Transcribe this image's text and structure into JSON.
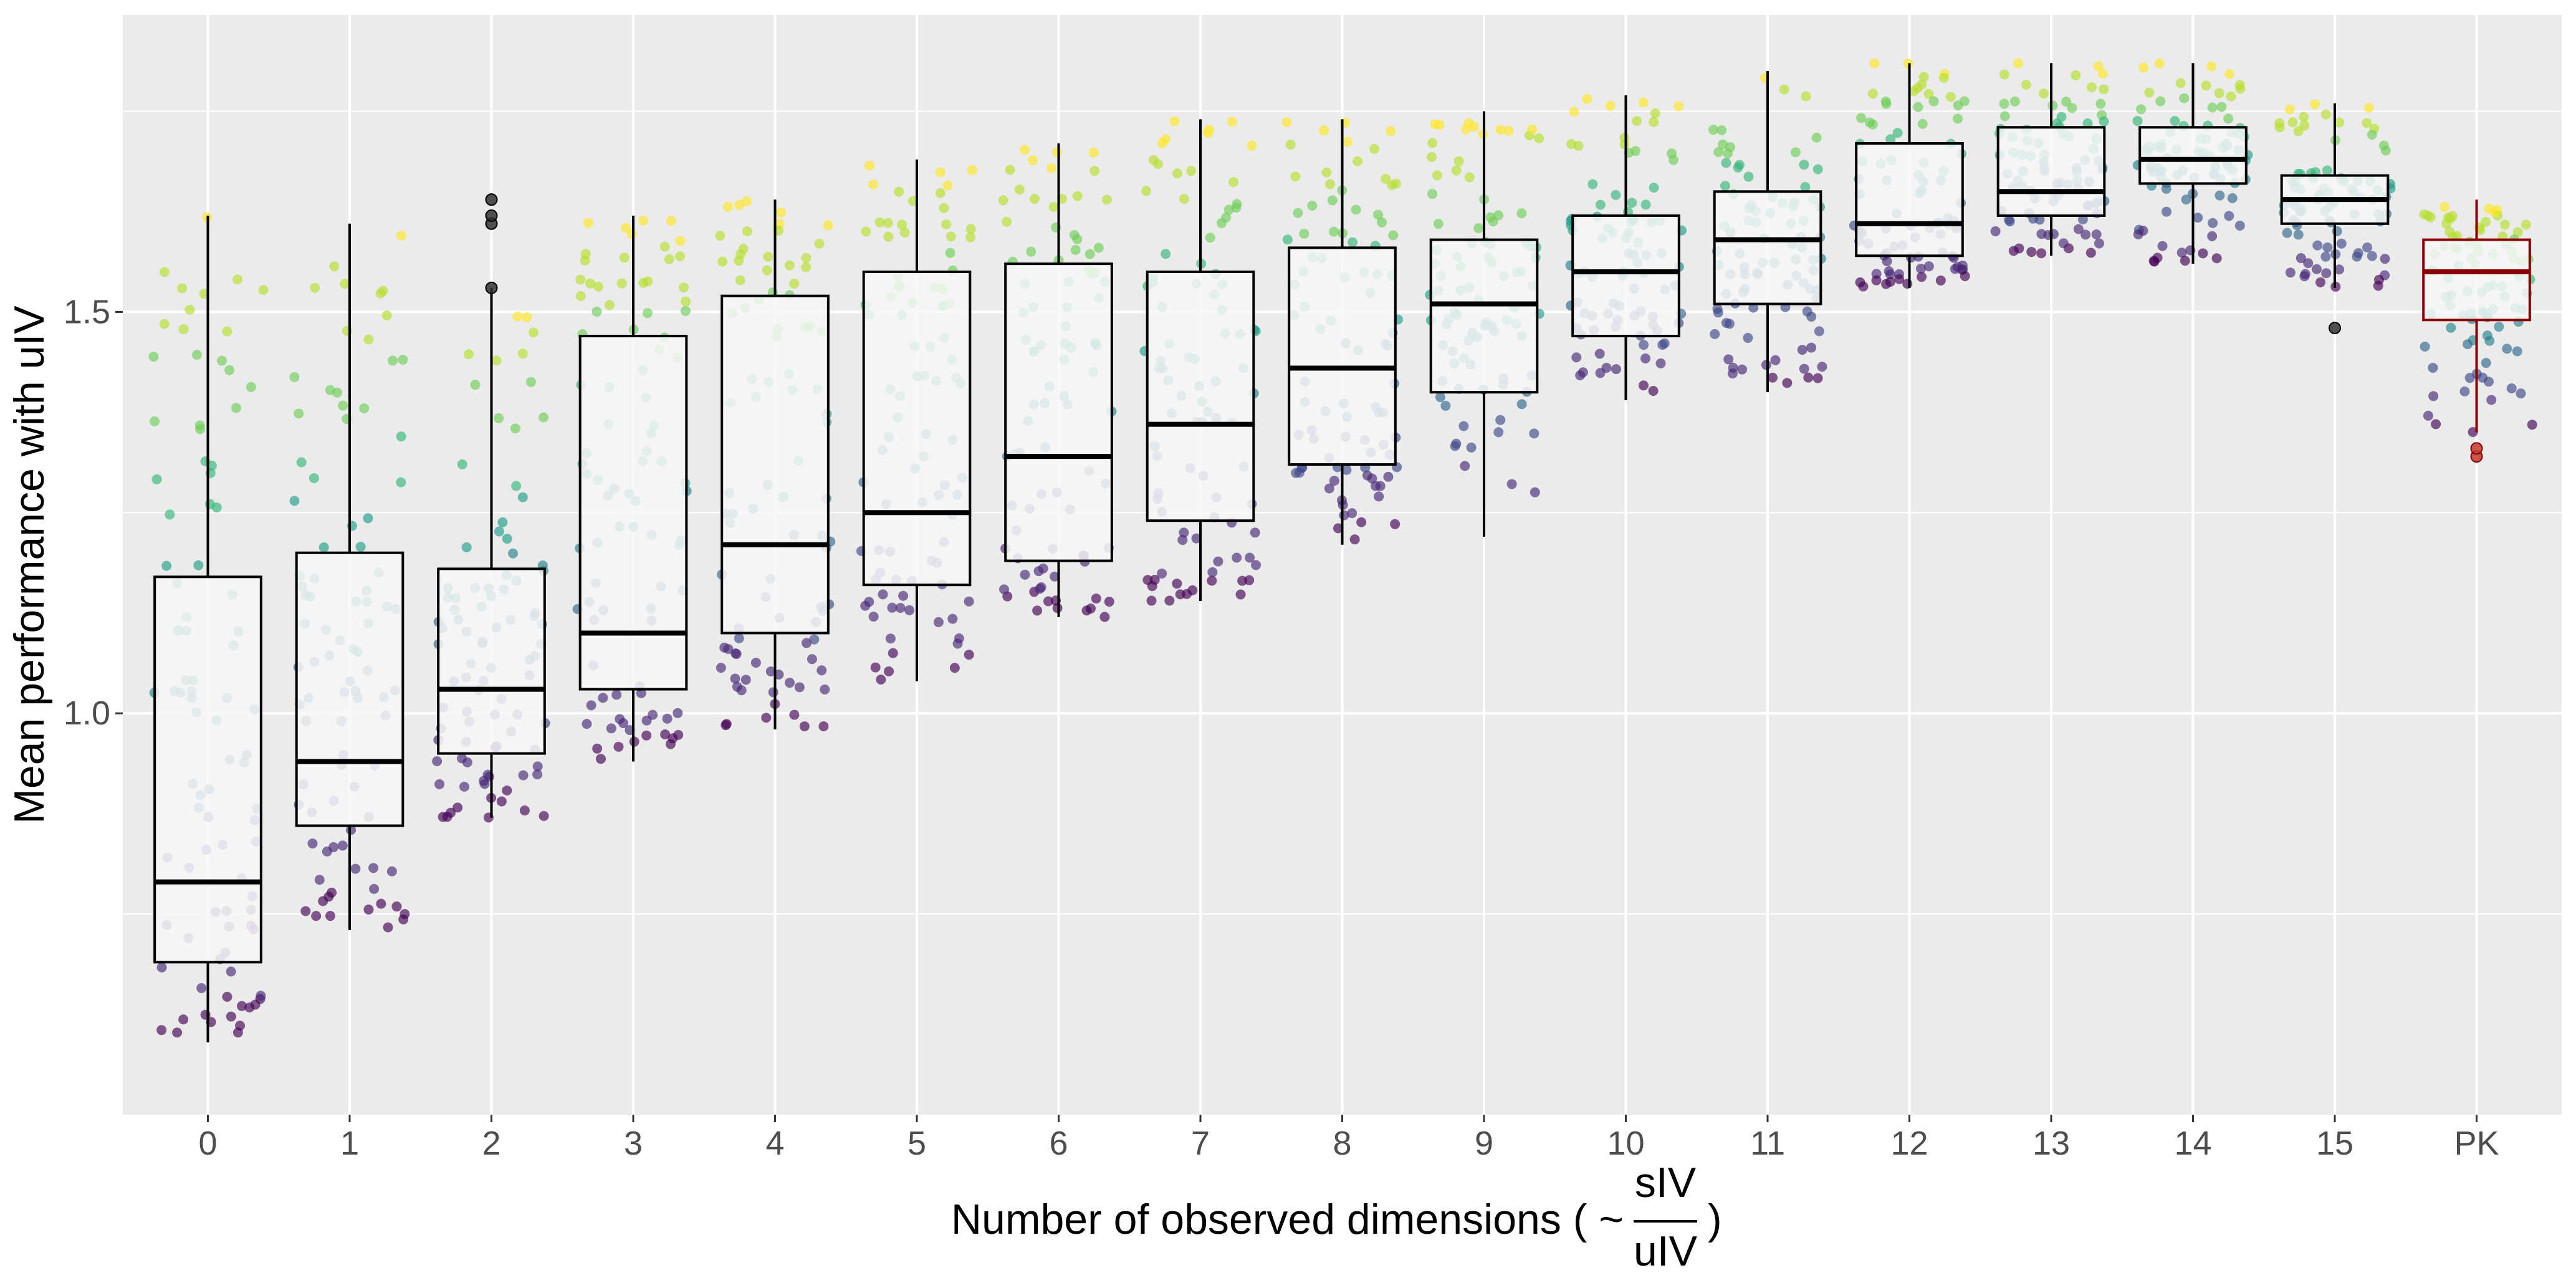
{
  "chart_data": {
    "type": "box",
    "title": "",
    "xlabel_text": "Number of observed dimensions ( ~",
    "xlabel_frac_num": "sIV",
    "xlabel_frac_den": "uIV",
    "xlabel_close": ")",
    "ylabel": "Mean performance with uIV",
    "ylim": [
      0.5,
      1.87
    ],
    "yticks": [
      1.0,
      1.5
    ],
    "ytick_labels": [
      "1.0",
      "1.5"
    ],
    "grid": true,
    "legend": "none",
    "categories": [
      "0",
      "1",
      "2",
      "3",
      "4",
      "5",
      "6",
      "7",
      "8",
      "9",
      "10",
      "11",
      "12",
      "13",
      "14",
      "15",
      "PK"
    ],
    "highlight_category": "PK",
    "colors": {
      "panel_bg": "#ebebeb",
      "grid": "#ffffff",
      "box_fill": "#f7f7f7",
      "box_line": "#000000",
      "pk_line": "#8b0000",
      "pk_label": "#8b0000",
      "point_palette": [
        "#440154",
        "#482878",
        "#3e4a89",
        "#31688e",
        "#26828e",
        "#1f9e89",
        "#35b779",
        "#6ece58",
        "#b5de2b",
        "#fde725"
      ]
    },
    "series": [
      {
        "category": "0",
        "min": 0.59,
        "q1": 0.69,
        "median": 0.79,
        "q3": 1.17,
        "max": 1.62,
        "outliers": []
      },
      {
        "category": "1",
        "min": 0.73,
        "q1": 0.86,
        "median": 0.94,
        "q3": 1.2,
        "max": 1.61,
        "outliers": []
      },
      {
        "category": "2",
        "min": 0.87,
        "q1": 0.95,
        "median": 1.03,
        "q3": 1.18,
        "max": 1.53,
        "outliers": [
          1.53,
          1.61,
          1.62,
          1.64
        ]
      },
      {
        "category": "3",
        "min": 0.94,
        "q1": 1.03,
        "median": 1.1,
        "q3": 1.47,
        "max": 1.62,
        "outliers": []
      },
      {
        "category": "4",
        "min": 0.98,
        "q1": 1.1,
        "median": 1.21,
        "q3": 1.52,
        "max": 1.64,
        "outliers": []
      },
      {
        "category": "5",
        "min": 1.04,
        "q1": 1.16,
        "median": 1.25,
        "q3": 1.55,
        "max": 1.69,
        "outliers": []
      },
      {
        "category": "6",
        "min": 1.12,
        "q1": 1.19,
        "median": 1.32,
        "q3": 1.56,
        "max": 1.71,
        "outliers": []
      },
      {
        "category": "7",
        "min": 1.14,
        "q1": 1.24,
        "median": 1.36,
        "q3": 1.55,
        "max": 1.74,
        "outliers": []
      },
      {
        "category": "8",
        "min": 1.21,
        "q1": 1.31,
        "median": 1.43,
        "q3": 1.58,
        "max": 1.74,
        "outliers": []
      },
      {
        "category": "9",
        "min": 1.22,
        "q1": 1.4,
        "median": 1.51,
        "q3": 1.59,
        "max": 1.75,
        "outliers": []
      },
      {
        "category": "10",
        "min": 1.39,
        "q1": 1.47,
        "median": 1.55,
        "q3": 1.62,
        "max": 1.77,
        "outliers": []
      },
      {
        "category": "11",
        "min": 1.4,
        "q1": 1.51,
        "median": 1.59,
        "q3": 1.65,
        "max": 1.8,
        "outliers": []
      },
      {
        "category": "12",
        "min": 1.53,
        "q1": 1.57,
        "median": 1.61,
        "q3": 1.71,
        "max": 1.81,
        "outliers": []
      },
      {
        "category": "13",
        "min": 1.57,
        "q1": 1.62,
        "median": 1.65,
        "q3": 1.73,
        "max": 1.81,
        "outliers": []
      },
      {
        "category": "14",
        "min": 1.56,
        "q1": 1.66,
        "median": 1.69,
        "q3": 1.73,
        "max": 1.81,
        "outliers": []
      },
      {
        "category": "15",
        "min": 1.53,
        "q1": 1.61,
        "median": 1.64,
        "q3": 1.67,
        "max": 1.76,
        "outliers": [
          1.48
        ]
      },
      {
        "category": "PK",
        "min": 1.35,
        "q1": 1.49,
        "median": 1.55,
        "q3": 1.59,
        "max": 1.64,
        "outliers": [
          1.32,
          1.33
        ]
      }
    ]
  }
}
